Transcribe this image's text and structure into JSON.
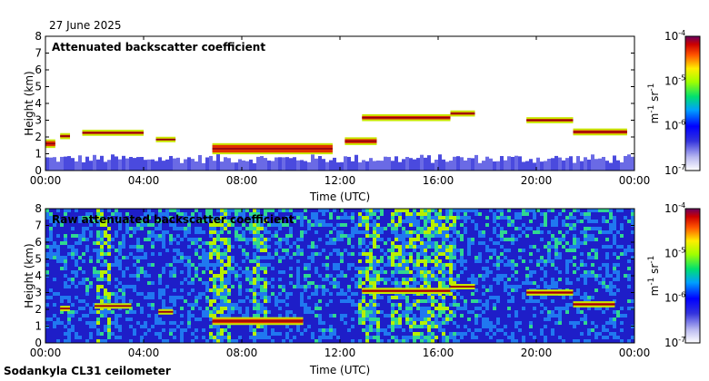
{
  "date": "27 June 2025",
  "footer": "Sodankyla CL31 ceilometer",
  "chart_data": [
    {
      "type": "heatmap",
      "title": "Attenuated backscatter coefficient",
      "xlabel": "Time (UTC)",
      "ylabel": "Height (km)",
      "xlim": [
        0,
        24
      ],
      "ylim": [
        0,
        8
      ],
      "x_tick_labels": [
        "00:00",
        "04:00",
        "08:00",
        "12:00",
        "16:00",
        "20:00",
        "00:00"
      ],
      "y_ticks": [
        0,
        1,
        2,
        3,
        4,
        5,
        6,
        7,
        8
      ],
      "colorbar": {
        "label_main": "m",
        "label_sup1": "-1",
        "label_mid": " sr",
        "label_sup2": "-1",
        "scale": "log",
        "ticks": [
          {
            "base": "10",
            "exp": "-4"
          },
          {
            "base": "10",
            "exp": "-5"
          },
          {
            "base": "10",
            "exp": "-6"
          },
          {
            "base": "10",
            "exp": "-7"
          }
        ]
      },
      "cloud_layers": [
        {
          "t_start": 0.0,
          "t_end": 0.4,
          "height_km": 1.6,
          "thickness_km": 0.35
        },
        {
          "t_start": 0.6,
          "t_end": 1.0,
          "height_km": 2.05,
          "thickness_km": 0.2
        },
        {
          "t_start": 1.5,
          "t_end": 4.0,
          "height_km": 2.25,
          "thickness_km": 0.2
        },
        {
          "t_start": 4.5,
          "t_end": 5.3,
          "height_km": 1.85,
          "thickness_km": 0.15
        },
        {
          "t_start": 6.8,
          "t_end": 11.7,
          "height_km": 1.3,
          "thickness_km": 0.5
        },
        {
          "t_start": 12.2,
          "t_end": 13.5,
          "height_km": 1.75,
          "thickness_km": 0.3
        },
        {
          "t_start": 12.9,
          "t_end": 16.5,
          "height_km": 3.15,
          "thickness_km": 0.25
        },
        {
          "t_start": 16.5,
          "t_end": 17.5,
          "height_km": 3.4,
          "thickness_km": 0.2
        },
        {
          "t_start": 19.6,
          "t_end": 21.5,
          "height_km": 3.0,
          "thickness_km": 0.2
        },
        {
          "t_start": 21.5,
          "t_end": 23.7,
          "height_km": 2.3,
          "thickness_km": 0.25
        }
      ],
      "noise": false
    },
    {
      "type": "heatmap",
      "title": "Raw attenuated backscatter coefficient",
      "xlabel": "Time (UTC)",
      "ylabel": "Height (km)",
      "xlim": [
        0,
        24
      ],
      "ylim": [
        0,
        8
      ],
      "x_tick_labels": [
        "00:00",
        "04:00",
        "08:00",
        "12:00",
        "16:00",
        "20:00",
        "00:00"
      ],
      "y_ticks": [
        0,
        1,
        2,
        3,
        4,
        5,
        6,
        7,
        8
      ],
      "colorbar": {
        "label_main": "m",
        "label_sup1": "-1",
        "label_mid": " sr",
        "label_sup2": "-1",
        "scale": "log",
        "ticks": [
          {
            "base": "10",
            "exp": "-4"
          },
          {
            "base": "10",
            "exp": "-5"
          },
          {
            "base": "10",
            "exp": "-6"
          },
          {
            "base": "10",
            "exp": "-7"
          }
        ]
      },
      "cloud_layers": [
        {
          "t_start": 0.6,
          "t_end": 1.0,
          "height_km": 2.05,
          "thickness_km": 0.15
        },
        {
          "t_start": 2.0,
          "t_end": 3.5,
          "height_km": 2.2,
          "thickness_km": 0.15
        },
        {
          "t_start": 4.6,
          "t_end": 5.2,
          "height_km": 1.85,
          "thickness_km": 0.1
        },
        {
          "t_start": 6.8,
          "t_end": 10.5,
          "height_km": 1.3,
          "thickness_km": 0.3
        },
        {
          "t_start": 12.9,
          "t_end": 16.5,
          "height_km": 3.1,
          "thickness_km": 0.2
        },
        {
          "t_start": 16.5,
          "t_end": 17.5,
          "height_km": 3.35,
          "thickness_km": 0.15
        },
        {
          "t_start": 19.6,
          "t_end": 21.5,
          "height_km": 3.0,
          "thickness_km": 0.2
        },
        {
          "t_start": 21.5,
          "t_end": 23.2,
          "height_km": 2.3,
          "thickness_km": 0.2
        }
      ],
      "noise": true
    }
  ]
}
